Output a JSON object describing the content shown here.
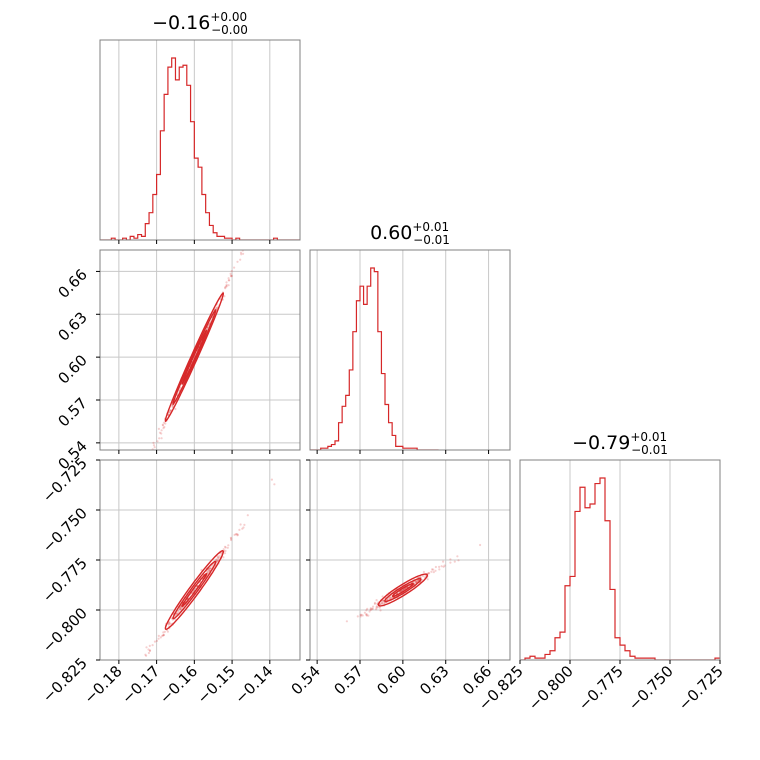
{
  "chart_data": {
    "type": "corner",
    "color": "#d62728",
    "grid": true,
    "parameters": [
      {
        "median": -0.16,
        "range": [
          -0.185,
          -0.132
        ],
        "ticks": [
          -0.18,
          -0.17,
          -0.16,
          -0.15,
          -0.14
        ],
        "tick_labels": [
          "−0.18",
          "−0.17",
          "−0.16",
          "−0.15",
          "−0.14"
        ],
        "title": {
          "value": "−0.16",
          "plus": "+0.00",
          "minus": "−0.00"
        },
        "histogram": {
          "bin_start": -0.185,
          "bin_width": 0.001,
          "counts": [
            0,
            0,
            0,
            1,
            0,
            0,
            1,
            0,
            2,
            1,
            3,
            2,
            9,
            15,
            25,
            36,
            60,
            80,
            95,
            100,
            88,
            95,
            96,
            85,
            65,
            45,
            40,
            25,
            15,
            8,
            4,
            2,
            2,
            1,
            1,
            0,
            1,
            0,
            0,
            0,
            0,
            0,
            0,
            0,
            0,
            0,
            1,
            0,
            0,
            0,
            0,
            0,
            0
          ]
        }
      },
      {
        "median": 0.6,
        "range": [
          0.535,
          0.675
        ],
        "ticks": [
          0.54,
          0.57,
          0.6,
          0.63,
          0.66
        ],
        "tick_labels": [
          "0.54",
          "0.57",
          "0.60",
          "0.63",
          "0.66"
        ],
        "title": {
          "value": "0.60",
          "plus": "+0.01",
          "minus": "−0.01"
        },
        "histogram": {
          "bin_start": 0.535,
          "bin_width": 0.0025,
          "counts": [
            0,
            0,
            0,
            1,
            1,
            2,
            3,
            5,
            15,
            24,
            30,
            44,
            65,
            82,
            90,
            80,
            90,
            100,
            98,
            65,
            42,
            25,
            15,
            8,
            2,
            2,
            1,
            1,
            1,
            1,
            0,
            0,
            0,
            0,
            0,
            0
          ]
        }
      },
      {
        "median": -0.79,
        "range": [
          -0.825,
          -0.725
        ],
        "ticks": [
          -0.825,
          -0.8,
          -0.775,
          -0.75,
          -0.725
        ],
        "tick_labels": [
          "−0.825",
          "−0.800",
          "−0.775",
          "−0.750",
          "−0.725"
        ],
        "title": {
          "value": "−0.79",
          "plus": "+0.01",
          "minus": "−0.01"
        },
        "histogram": {
          "bin_start": -0.825,
          "bin_width": 0.0025,
          "counts": [
            0,
            1,
            2,
            1,
            1,
            3,
            5,
            12,
            15,
            40,
            45,
            80,
            93,
            82,
            84,
            95,
            98,
            75,
            38,
            12,
            8,
            5,
            2,
            1,
            1,
            1,
            1,
            0,
            0,
            0,
            0,
            0,
            0,
            0,
            0,
            0,
            0,
            0,
            0,
            1
          ]
        }
      }
    ],
    "pairs": [
      {
        "x_param": 0,
        "y_param": 1,
        "slope": 5.8,
        "spread": [
          0.0016,
          0.0035,
          0.0055
        ],
        "scatter_seed": 7
      },
      {
        "x_param": 0,
        "y_param": 2,
        "slope": 2.5,
        "spread": [
          0.0012,
          0.0026,
          0.0042
        ],
        "scatter_seed": 11
      },
      {
        "x_param": 1,
        "y_param": 2,
        "slope": 0.43,
        "spread": [
          0.0009,
          0.0018,
          0.003
        ],
        "scatter_seed": 19
      }
    ]
  }
}
